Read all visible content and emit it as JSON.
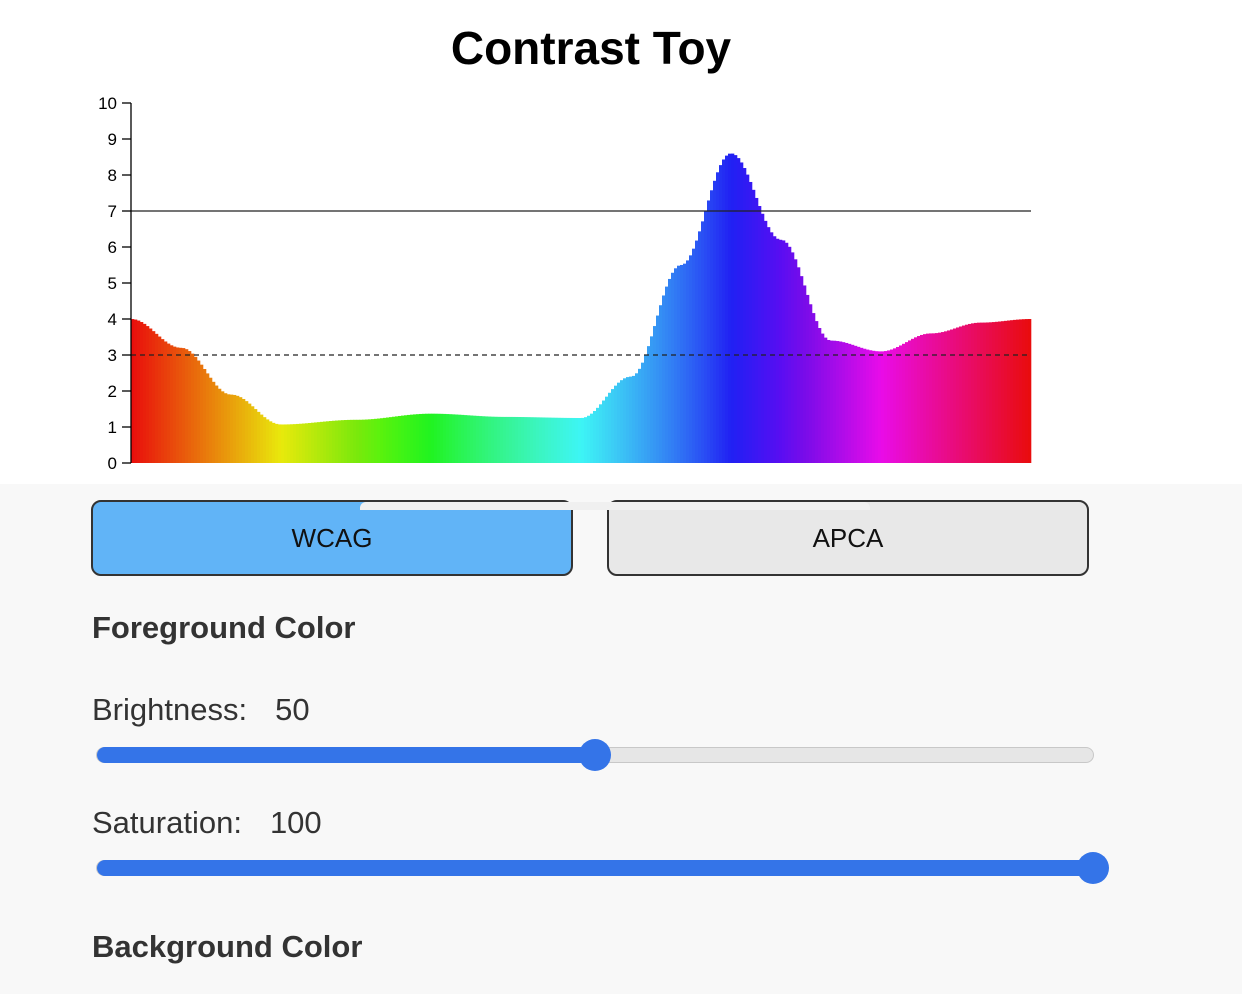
{
  "title": "Contrast Toy",
  "chart_data": {
    "type": "bar",
    "title": "",
    "xlabel": "",
    "ylabel": "",
    "ylim": [
      0,
      10
    ],
    "yticks": [
      "0",
      "1",
      "2",
      "3",
      "4",
      "5",
      "6",
      "7",
      "8",
      "9",
      "10"
    ],
    "reference_lines": [
      {
        "value": 7,
        "style": "solid"
      },
      {
        "value": 3,
        "style": "dashed"
      }
    ],
    "hue_domain": [
      0,
      360
    ],
    "hue_samples": [
      0,
      20,
      40,
      60,
      90,
      120,
      150,
      180,
      200,
      220,
      240,
      260,
      280,
      300,
      320,
      340,
      360
    ],
    "values": [
      4.0,
      3.2,
      1.9,
      1.07,
      1.2,
      1.37,
      1.28,
      1.25,
      2.4,
      5.5,
      8.6,
      6.2,
      3.4,
      3.1,
      3.6,
      3.9,
      4.0
    ],
    "colors": "hue gradient red→yellow→green→cyan→blue→magenta→red"
  },
  "modes": {
    "wcag_label": "WCAG",
    "apca_label": "APCA",
    "selected": "WCAG",
    "selected_color": "#61b4f7",
    "unselected_color": "#e8e8e8"
  },
  "foreground": {
    "heading": "Foreground Color",
    "brightness_label": "Brightness:",
    "brightness_value": "50",
    "brightness_fraction": 0.5,
    "saturation_label": "Saturation:",
    "saturation_value": "100",
    "saturation_fraction": 1.0
  },
  "background": {
    "heading": "Background Color"
  },
  "accent": "#3474e8"
}
